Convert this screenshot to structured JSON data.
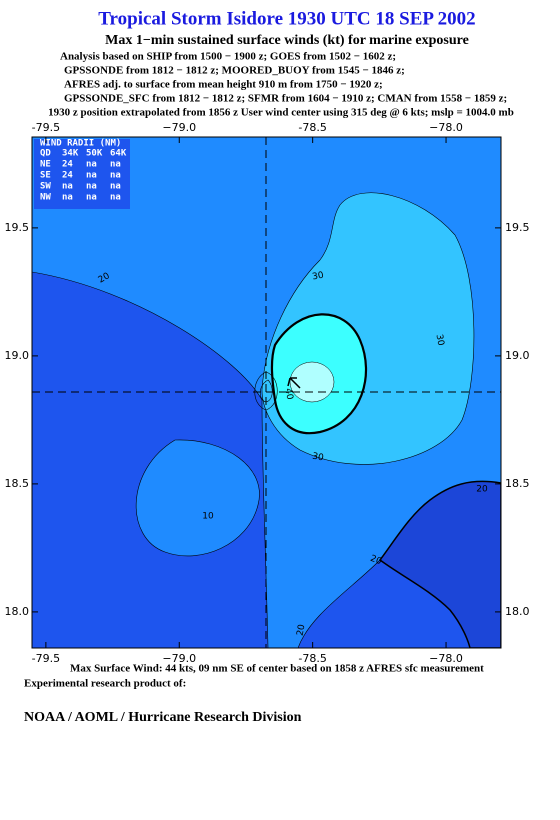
{
  "header": {
    "title": "Tropical Storm Isidore 1930 UTC 18 SEP 2002",
    "subtitle": "Max 1−min sustained surface winds (kt) for marine exposure",
    "notes": [
      "Analysis based on  SHIP from 1500 − 1900 z;  GOES from 1502 − 1602 z;",
      "GPSSONDE from 1812 − 1812 z;  MOORED_BUOY from 1545 − 1846 z;",
      "AFRES adj. to surface from mean height 910 m from 1750 − 1920 z;",
      "GPSSONDE_SFC from 1812 − 1812 z;  SFMR from 1604 − 1910 z;  CMAN from 1558 − 1859 z;",
      "1930 z position extrapolated from 1856 z User wind center using 315 deg @ 6 kts; mslp = 1004.0 mb"
    ]
  },
  "map": {
    "xlim": [
      -79.552,
      -77.794
    ],
    "ylim": [
      17.859,
      19.855
    ],
    "xticks": [
      -79.5,
      {
        "value": -79,
        "label": "−79.0"
      },
      -78.5,
      {
        "value": -78,
        "label": "−78.0"
      }
    ],
    "yticks": [
      {
        "value": 18,
        "label": "18.0"
      },
      18.5,
      {
        "value": 19,
        "label": "19.0"
      },
      19.5
    ],
    "wind_radii": {
      "title": "WIND RADII (NM)",
      "columns": [
        "QD",
        "34K",
        "50K",
        "64K"
      ],
      "rows": [
        [
          "NE",
          24,
          "na",
          "na"
        ],
        [
          "SE",
          24,
          "na",
          "na"
        ],
        [
          "SW",
          "na",
          "na",
          "na"
        ],
        [
          "NW",
          "na",
          "na",
          "na"
        ]
      ]
    },
    "contour_labels": [
      20,
      30,
      30,
      40,
      10,
      30,
      20,
      20,
      20
    ]
  },
  "footer": {
    "max_wind": "Max Surface Wind: 44 kts, 09 nm SE of center based on 1858 z AFRES sfc measurement",
    "credit": "Experimental research product of:",
    "org": "NOAA / AOML / Hurricane Research Division"
  }
}
